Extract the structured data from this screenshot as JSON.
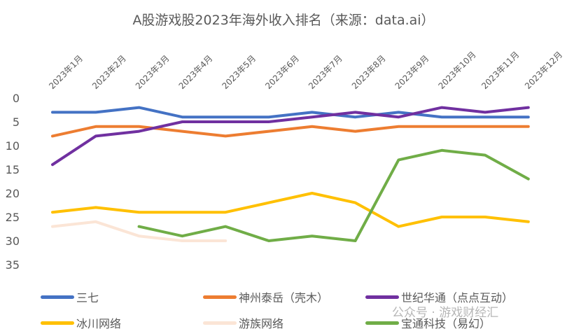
{
  "chart_data": {
    "type": "line",
    "title": "A股游戏股2023年海外收入排名（来源：data.ai）",
    "categories": [
      "2023年1月",
      "2023年2月",
      "2023年3月",
      "2023年4月",
      "2023年5月",
      "2023年6月",
      "2023年7月",
      "2023年8月",
      "2023年9月",
      "2023年10月",
      "2023年11月",
      "2023年12月"
    ],
    "y_ticks": [
      0,
      5,
      10,
      15,
      20,
      25,
      30,
      35
    ],
    "ylim": [
      0,
      35
    ],
    "y_reversed": true,
    "grid": false,
    "legend_position": "bottom",
    "series": [
      {
        "name": "三七",
        "color": "#4472C4",
        "values": [
          3,
          3,
          2,
          4,
          4,
          4,
          3,
          4,
          3,
          4,
          4,
          4
        ]
      },
      {
        "name": "神州泰岳（壳木）",
        "color": "#ED7D31",
        "values": [
          8,
          6,
          6,
          7,
          8,
          7,
          6,
          7,
          6,
          6,
          6,
          6
        ]
      },
      {
        "name": "世纪华通（点点互动）",
        "color": "#7030A0",
        "values": [
          14,
          8,
          7,
          5,
          5,
          5,
          4,
          3,
          4,
          2,
          3,
          2
        ]
      },
      {
        "name": "冰川网络",
        "color": "#FFC000",
        "values": [
          24,
          23,
          24,
          24,
          24,
          22,
          20,
          22,
          27,
          25,
          25,
          26
        ]
      },
      {
        "name": "游族网络",
        "color": "#FBE5D6",
        "values": [
          27,
          26,
          29,
          30,
          30,
          null,
          null,
          null,
          null,
          null,
          null,
          null
        ]
      },
      {
        "name": "宝通科技（易幻）",
        "color": "#70AD47",
        "values": [
          null,
          null,
          27,
          29,
          27,
          30,
          29,
          30,
          13,
          11,
          12,
          17
        ]
      }
    ]
  },
  "watermark": "公众号 · 游戏财经汇"
}
